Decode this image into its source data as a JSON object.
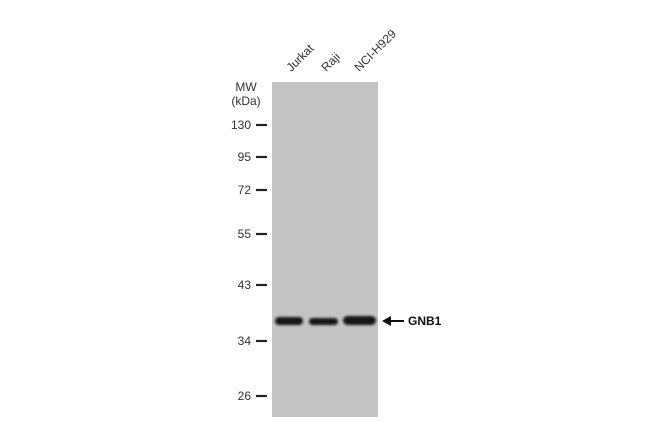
{
  "lanes": [
    "Jurkat",
    "Raji",
    "NCI-H929"
  ],
  "mw": {
    "title": "MW",
    "unit": "(kDa)",
    "markers": [
      130,
      95,
      72,
      55,
      43,
      34,
      26
    ]
  },
  "band": {
    "label": "GNB1"
  }
}
